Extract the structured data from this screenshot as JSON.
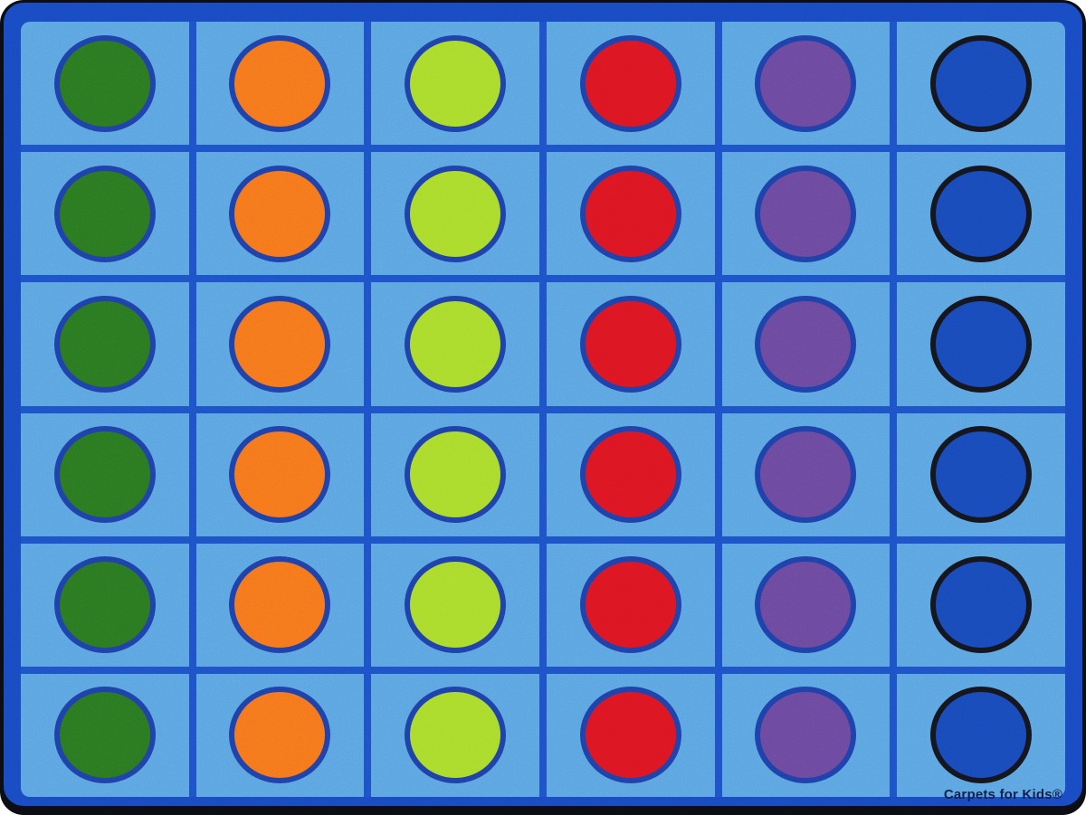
{
  "rug": {
    "brand_label": "Carpets for Kids®",
    "colors": {
      "edge_black": "#0b0d12",
      "frame_blue": "#1848c0",
      "grid_line_blue": "#1c50c6",
      "field_blue": "#5aa2e0",
      "ring_blue": "#1d3fa6",
      "ring_black": "#14151c",
      "text_navy": "#13204e"
    },
    "grid": {
      "rows": 6,
      "columns": 6,
      "column_dots": [
        {
          "name": "dark-green",
          "fill": "#2a7520",
          "ring": "blue"
        },
        {
          "name": "orange",
          "fill": "#f5741b",
          "ring": "blue"
        },
        {
          "name": "lime-green",
          "fill": "#a8da2b",
          "ring": "blue"
        },
        {
          "name": "red",
          "fill": "#dc1522",
          "ring": "blue"
        },
        {
          "name": "purple",
          "fill": "#69479c",
          "ring": "blue"
        },
        {
          "name": "royal-blue",
          "fill": "#1848b8",
          "ring": "black"
        }
      ]
    }
  }
}
